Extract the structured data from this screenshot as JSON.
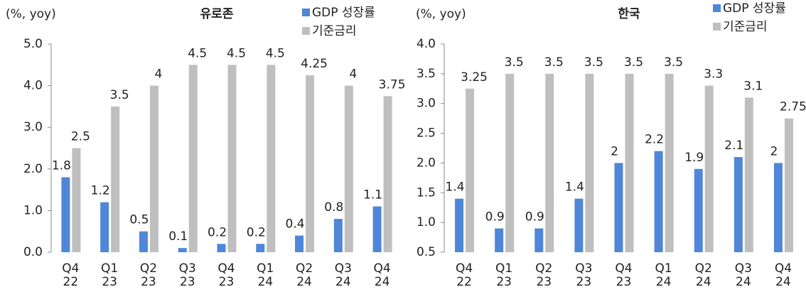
{
  "chart_data": [
    {
      "type": "bar",
      "title": "유로존",
      "y_label": "(%, yoy)",
      "categories": [
        "Q4\n22",
        "Q1\n23",
        "Q2\n23",
        "Q3\n23",
        "Q4\n23",
        "Q1\n24",
        "Q2\n24",
        "Q3\n24",
        "Q4\n24"
      ],
      "series": [
        {
          "name": "GDP 성장률",
          "color": "#4f86d8",
          "values": [
            1.8,
            1.2,
            0.5,
            0.1,
            0.2,
            0.2,
            0.4,
            0.8,
            1.1
          ]
        },
        {
          "name": "기준금리",
          "color": "#bfbfbf",
          "values": [
            2.5,
            3.5,
            4,
            4.5,
            4.5,
            4.5,
            4.25,
            4,
            3.75
          ]
        }
      ],
      "ylim": [
        0,
        5
      ],
      "yticks": [
        {
          "value": 0,
          "label": "0.0"
        },
        {
          "value": 1,
          "label": "1.0"
        },
        {
          "value": 2,
          "label": "2.0"
        },
        {
          "value": 3,
          "label": "3.0"
        },
        {
          "value": 4,
          "label": "4.0"
        },
        {
          "value": 5,
          "label": "5.0"
        }
      ]
    },
    {
      "type": "bar",
      "title": "한국",
      "y_label": "(%, yoy)",
      "categories": [
        "Q4\n22",
        "Q1\n23",
        "Q2\n23",
        "Q3\n23",
        "Q4\n23",
        "Q1\n24",
        "Q2\n24",
        "Q3\n24",
        "Q4\n24"
      ],
      "series": [
        {
          "name": "GDP 성장률",
          "color": "#4f86d8",
          "values": [
            1.4,
            0.9,
            0.9,
            1.4,
            2,
            2.2,
            1.9,
            2.1,
            2
          ]
        },
        {
          "name": "기준금리",
          "color": "#bfbfbf",
          "values": [
            3.25,
            3.5,
            3.5,
            3.5,
            3.5,
            3.5,
            3.3,
            3.1,
            2.75
          ]
        }
      ],
      "ylim": [
        0.5,
        4
      ],
      "yticks": [
        0.5,
        {
          "value": 1,
          "label": "1.0"
        },
        1.5,
        {
          "value": 2,
          "label": "2.0"
        },
        2.5,
        {
          "value": 3,
          "label": "3.0"
        },
        3.5,
        {
          "value": 4,
          "label": "4.0"
        }
      ]
    }
  ]
}
